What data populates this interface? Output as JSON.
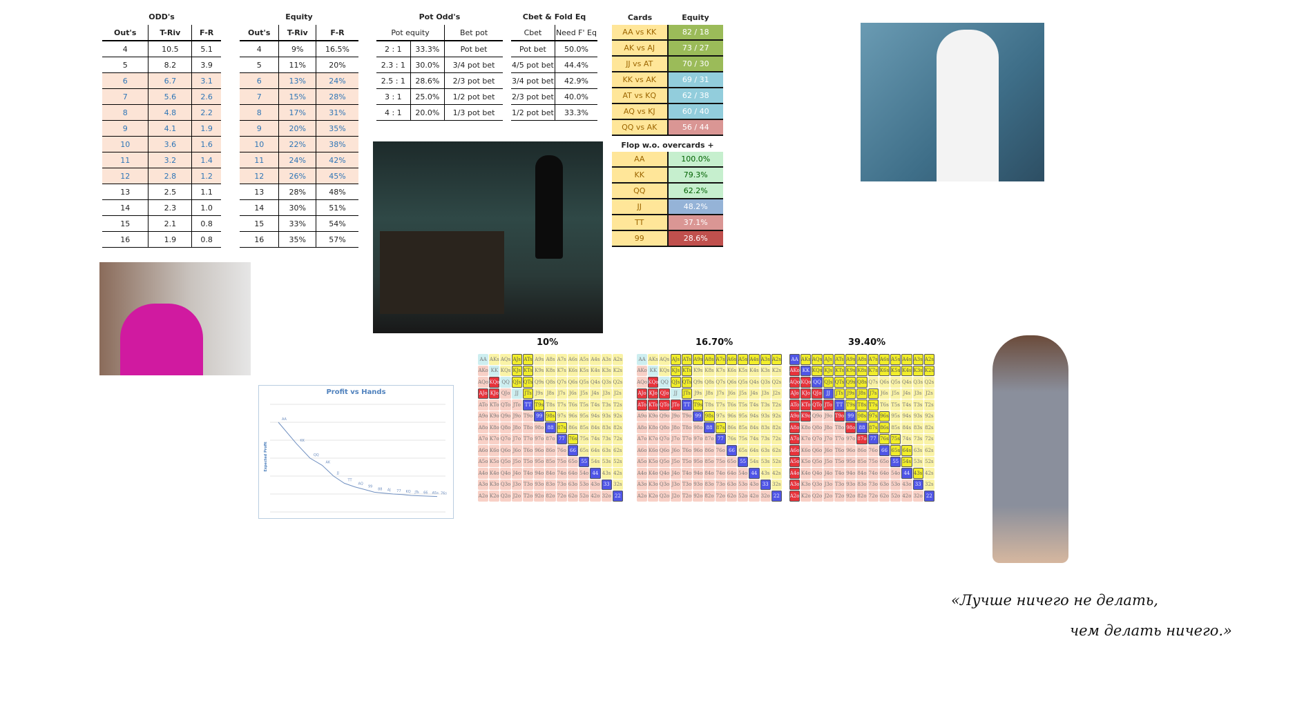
{
  "odds": {
    "title": "ODD's",
    "headers": [
      "Out's",
      "T-Riv",
      "F-R"
    ],
    "rows": [
      [
        "4",
        "10.5",
        "5.1"
      ],
      [
        "5",
        "8.2",
        "3.9"
      ],
      [
        "6",
        "6.7",
        "3.1"
      ],
      [
        "7",
        "5.6",
        "2.6"
      ],
      [
        "8",
        "4.8",
        "2.2"
      ],
      [
        "9",
        "4.1",
        "1.9"
      ],
      [
        "10",
        "3.6",
        "1.6"
      ],
      [
        "11",
        "3.2",
        "1.4"
      ],
      [
        "12",
        "2.8",
        "1.2"
      ],
      [
        "13",
        "2.5",
        "1.1"
      ],
      [
        "14",
        "2.3",
        "1.0"
      ],
      [
        "15",
        "2.1",
        "0.8"
      ],
      [
        "16",
        "1.9",
        "0.8"
      ]
    ]
  },
  "equity": {
    "title": "Equity",
    "headers": [
      "Out's",
      "T-Riv",
      "F-R"
    ],
    "rows": [
      [
        "4",
        "9%",
        "16.5%"
      ],
      [
        "5",
        "11%",
        "20%"
      ],
      [
        "6",
        "13%",
        "24%"
      ],
      [
        "7",
        "15%",
        "28%"
      ],
      [
        "8",
        "17%",
        "31%"
      ],
      [
        "9",
        "20%",
        "35%"
      ],
      [
        "10",
        "22%",
        "38%"
      ],
      [
        "11",
        "24%",
        "42%"
      ],
      [
        "12",
        "26%",
        "45%"
      ],
      [
        "13",
        "28%",
        "48%"
      ],
      [
        "14",
        "30%",
        "51%"
      ],
      [
        "15",
        "33%",
        "54%"
      ],
      [
        "16",
        "35%",
        "57%"
      ]
    ]
  },
  "pot_odds": {
    "title": "Pot Odd's",
    "headers": [
      "Pot equity",
      "Bet pot"
    ],
    "rows": [
      [
        "2 : 1",
        "33.3%",
        "Pot bet"
      ],
      [
        "2.3 : 1",
        "30.0%",
        "3/4 pot bet"
      ],
      [
        "2.5 : 1",
        "28.6%",
        "2/3 pot bet"
      ],
      [
        "3 : 1",
        "25.0%",
        "1/2 pot bet"
      ],
      [
        "4 : 1",
        "20.0%",
        "1/3 pot bet"
      ]
    ]
  },
  "cbet": {
    "title": "Cbet & Fold Eq",
    "headers": [
      "Cbet",
      "Need F' Eq"
    ],
    "rows": [
      [
        "Pot bet",
        "50.0%"
      ],
      [
        "4/5 pot bet",
        "44.4%"
      ],
      [
        "3/4 pot bet",
        "42.9%"
      ],
      [
        "2/3 pot bet",
        "40.0%"
      ],
      [
        "1/2 pot bet",
        "33.3%"
      ]
    ]
  },
  "cards": {
    "headers": [
      "Cards",
      "Equity"
    ],
    "rows": [
      {
        "c": "AA vs KK",
        "e": "82 / 18",
        "color": "#9bbb59"
      },
      {
        "c": "AK vs AJ",
        "e": "73 / 27",
        "color": "#9bbb59"
      },
      {
        "c": "JJ vs AT",
        "e": "70 / 30",
        "color": "#9bbb59"
      },
      {
        "c": "KK vs AK",
        "e": "69 / 31",
        "color": "#92cddc"
      },
      {
        "c": "AT vs KQ",
        "e": "62 / 38",
        "color": "#92cddc"
      },
      {
        "c": "AQ vs KJ",
        "e": "60 / 40",
        "color": "#92cddc"
      },
      {
        "c": "QQ vs AK",
        "e": "56 / 44",
        "color": "#da9694"
      }
    ],
    "flop_title": "Flop w.o. overcards +",
    "flop_rows": [
      {
        "c": "AA",
        "e": "100.0%",
        "color": "#c6efce",
        "text": "#006100"
      },
      {
        "c": "KK",
        "e": "79.3%",
        "color": "#c6efce",
        "text": "#006100"
      },
      {
        "c": "QQ",
        "e": "62.2%",
        "color": "#c6efce",
        "text": "#006100"
      },
      {
        "c": "JJ",
        "e": "48.2%",
        "color": "#95b3d7",
        "text": "#ffffff"
      },
      {
        "c": "TT",
        "e": "37.1%",
        "color": "#da9694",
        "text": "#ffffff"
      },
      {
        "c": "99",
        "e": "28.6%",
        "color": "#c0504d",
        "text": "#ffffff"
      }
    ],
    "card_bg": "#ffe699"
  },
  "chart_data": {
    "type": "line",
    "title": "Profit vs Hands",
    "ylabel": "Expected Profit",
    "xlabel": "",
    "grid": true,
    "x": [
      "AA",
      "KK",
      "QQ",
      "AK",
      "JJ",
      "TT",
      "AQ",
      "99",
      "88",
      "AJ",
      "77",
      "KQ",
      "JTs",
      "66",
      "A5s",
      "76s"
    ],
    "values": [
      5.0,
      3.8,
      3.0,
      2.6,
      2.0,
      1.6,
      1.4,
      1.25,
      1.1,
      1.05,
      1.0,
      0.97,
      0.92,
      0.9,
      0.88,
      0.86
    ],
    "ylim": [
      0,
      6
    ]
  },
  "ranges": [
    {
      "title": "10%",
      "pairs": [
        "TT",
        "99",
        "88",
        "77",
        "66",
        "55",
        "44",
        "33",
        "22"
      ],
      "suited": [
        "AJs",
        "ATs",
        "KJs",
        "KTs",
        "QJs",
        "QTs",
        "JTs",
        "T9s",
        "98s",
        "87s",
        "76s"
      ],
      "offsuit": [
        "KQo",
        "AJo",
        "KJo"
      ]
    },
    {
      "title": "16.70%",
      "pairs": [
        "TT",
        "99",
        "88",
        "77",
        "66",
        "55",
        "44",
        "33",
        "22"
      ],
      "suited": [
        "AJs",
        "ATs",
        "A9s",
        "A8s",
        "A7s",
        "A6s",
        "A5s",
        "A4s",
        "A3s",
        "A2s",
        "KJs",
        "KTs",
        "QJs",
        "QTs",
        "JTs",
        "T9s",
        "98s",
        "87s"
      ],
      "offsuit": [
        "KQo",
        "AJo",
        "KJo",
        "QJo",
        "ATo",
        "KTo",
        "QTo",
        "JTo"
      ]
    },
    {
      "title": "39.40%",
      "pairs": [
        "AA",
        "KK",
        "QQ",
        "JJ",
        "TT",
        "99",
        "88",
        "77",
        "66",
        "55",
        "44",
        "33",
        "22"
      ],
      "suited": [
        "AKs",
        "AQs",
        "AJs",
        "ATs",
        "A9s",
        "A8s",
        "A7s",
        "A6s",
        "A5s",
        "A4s",
        "A3s",
        "A2s",
        "KQs",
        "KJs",
        "KTs",
        "K9s",
        "K8s",
        "K7s",
        "K6s",
        "K5s",
        "K4s",
        "K3s",
        "K2s",
        "QJs",
        "QTs",
        "Q9s",
        "Q8s",
        "JTs",
        "J9s",
        "J8s",
        "J7s",
        "T9s",
        "T8s",
        "T7s",
        "98s",
        "97s",
        "96s",
        "87s",
        "86s",
        "76s",
        "75s",
        "65s",
        "64s",
        "54s",
        "43s"
      ],
      "offsuit": [
        "AKo",
        "AQo",
        "AJo",
        "ATo",
        "A9o",
        "A8o",
        "A7o",
        "A6o",
        "A5o",
        "A4o",
        "A3o",
        "A2o",
        "KQo",
        "KJo",
        "KTo",
        "K9o",
        "QJo",
        "QTo",
        "JTo",
        "T9o",
        "98o",
        "87o"
      ]
    }
  ],
  "range_colors": {
    "pair": "#cdeef0",
    "suited": "#faf3a6",
    "offsuit": "#f8d0c6",
    "pair_on": "#4f55e6",
    "suited_on": "#f2ee2a",
    "offsuit_on": "#e8333a"
  },
  "quote": {
    "line1": "«Лучше  ничего  не  делать,",
    "line2": "чем  делать  ничего.»"
  }
}
